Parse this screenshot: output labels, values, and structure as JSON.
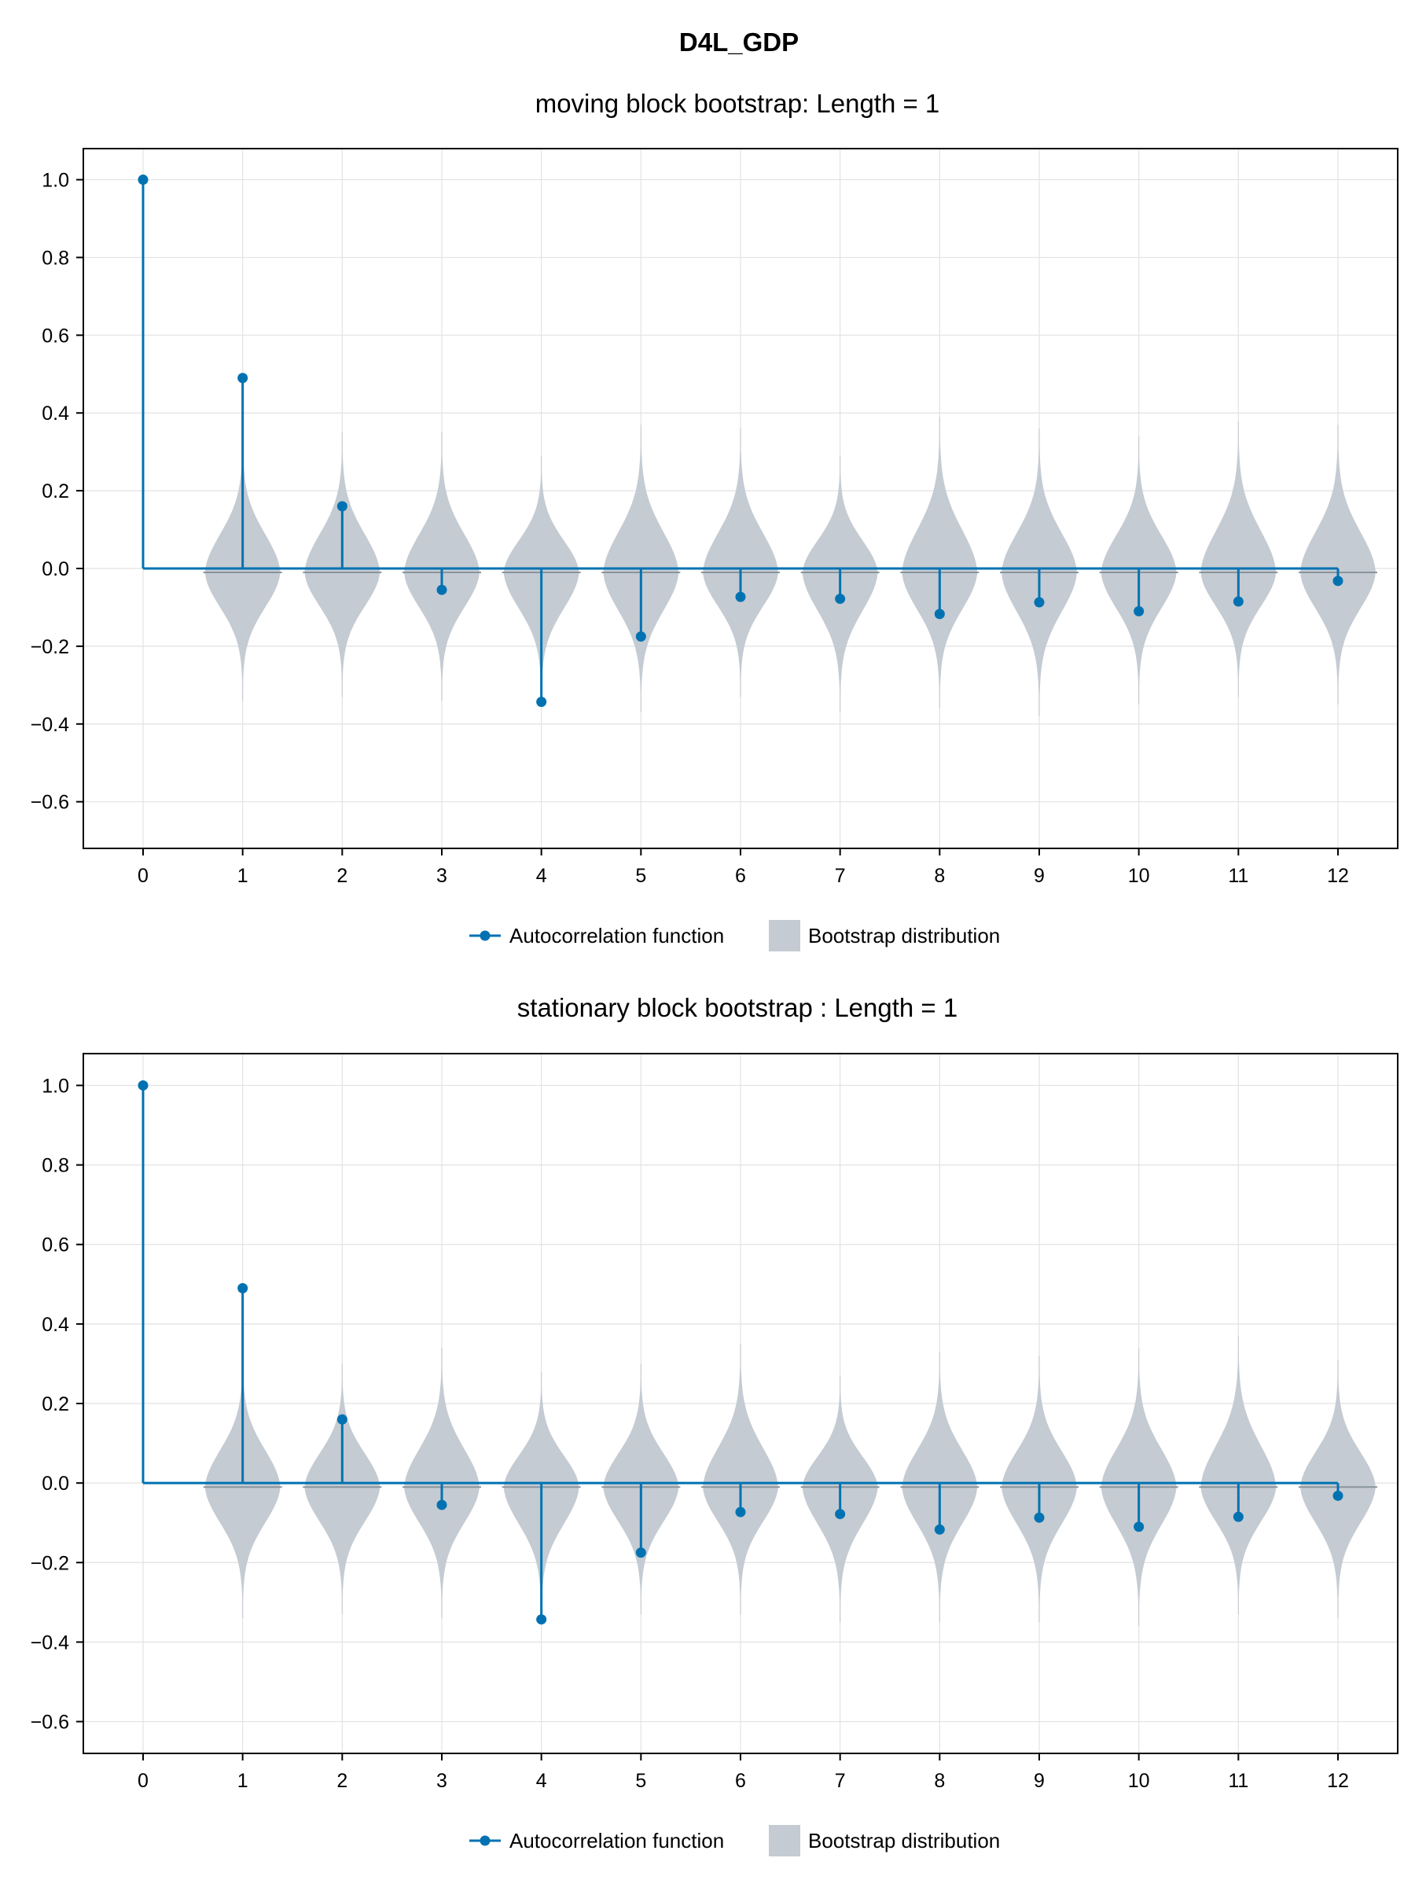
{
  "figure": {
    "title": "D4L_GDP"
  },
  "colors": {
    "acf": "#0072b2",
    "violin": "#c4cbd2",
    "violin_median": "#8a949e",
    "grid": "#e2e2e2",
    "axis": "#000000"
  },
  "chart_data": [
    {
      "type": "stem+violin",
      "title": "moving block bootstrap: Length = 1",
      "xlabel": "",
      "ylabel": "",
      "xlim": [
        -0.6,
        12.6
      ],
      "ylim": [
        -0.72,
        1.08
      ],
      "x_ticks": [
        0,
        1,
        2,
        3,
        4,
        5,
        6,
        7,
        8,
        9,
        10,
        11,
        12
      ],
      "y_ticks": [
        -0.6,
        -0.4,
        -0.2,
        0.0,
        0.2,
        0.4,
        0.6,
        0.8,
        1.0
      ],
      "y_tick_labels": [
        "−0.6",
        "−0.4",
        "−0.2",
        "0.0",
        "0.2",
        "0.4",
        "0.6",
        "0.8",
        "1.0"
      ],
      "grid": true,
      "legend_position": "bottom-center",
      "legend": [
        {
          "label": "Autocorrelation function",
          "kind": "line-marker"
        },
        {
          "label": "Bootstrap distribution",
          "kind": "patch"
        }
      ],
      "acf": {
        "lags": [
          0,
          1,
          2,
          3,
          4,
          5,
          6,
          7,
          8,
          9,
          10,
          11,
          12
        ],
        "values": [
          1.0,
          0.49,
          0.16,
          -0.055,
          -0.343,
          -0.175,
          -0.073,
          -0.078,
          -0.117,
          -0.087,
          -0.11,
          -0.085,
          -0.032
        ]
      },
      "bootstrap_distribution": {
        "lags": [
          1,
          2,
          3,
          4,
          5,
          6,
          7,
          8,
          9,
          10,
          11,
          12
        ],
        "median": [
          -0.01,
          -0.01,
          -0.01,
          -0.01,
          -0.01,
          -0.01,
          -0.01,
          -0.01,
          -0.01,
          -0.01,
          -0.01,
          -0.01
        ],
        "min": [
          -0.34,
          -0.33,
          -0.34,
          -0.35,
          -0.37,
          -0.33,
          -0.37,
          -0.36,
          -0.38,
          -0.35,
          -0.33,
          -0.35
        ],
        "max": [
          0.35,
          0.35,
          0.35,
          0.29,
          0.37,
          0.36,
          0.29,
          0.39,
          0.36,
          0.34,
          0.38,
          0.37
        ]
      }
    },
    {
      "type": "stem+violin",
      "title": "stationary block bootstrap : Length = 1",
      "xlabel": "",
      "ylabel": "",
      "xlim": [
        -0.6,
        12.6
      ],
      "ylim": [
        -0.68,
        1.08
      ],
      "x_ticks": [
        0,
        1,
        2,
        3,
        4,
        5,
        6,
        7,
        8,
        9,
        10,
        11,
        12
      ],
      "y_ticks": [
        -0.6,
        -0.4,
        -0.2,
        0.0,
        0.2,
        0.4,
        0.6,
        0.8,
        1.0
      ],
      "y_tick_labels": [
        "−0.6",
        "−0.4",
        "−0.2",
        "0.0",
        "0.2",
        "0.4",
        "0.6",
        "0.8",
        "1.0"
      ],
      "grid": true,
      "legend_position": "bottom-center",
      "legend": [
        {
          "label": "Autocorrelation function",
          "kind": "line-marker"
        },
        {
          "label": "Bootstrap distribution",
          "kind": "patch"
        }
      ],
      "acf": {
        "lags": [
          0,
          1,
          2,
          3,
          4,
          5,
          6,
          7,
          8,
          9,
          10,
          11,
          12
        ],
        "values": [
          1.0,
          0.49,
          0.16,
          -0.055,
          -0.343,
          -0.175,
          -0.073,
          -0.078,
          -0.117,
          -0.087,
          -0.11,
          -0.085,
          -0.032
        ]
      },
      "bootstrap_distribution": {
        "lags": [
          1,
          2,
          3,
          4,
          5,
          6,
          7,
          8,
          9,
          10,
          11,
          12
        ],
        "median": [
          -0.01,
          -0.01,
          -0.01,
          -0.01,
          -0.01,
          -0.01,
          -0.01,
          -0.01,
          -0.01,
          -0.01,
          -0.01,
          -0.01
        ],
        "min": [
          -0.34,
          -0.33,
          -0.34,
          -0.35,
          -0.33,
          -0.33,
          -0.35,
          -0.35,
          -0.35,
          -0.36,
          -0.33,
          -0.34
        ],
        "max": [
          0.33,
          0.3,
          0.34,
          0.28,
          0.3,
          0.35,
          0.27,
          0.33,
          0.32,
          0.34,
          0.37,
          0.31
        ]
      }
    }
  ]
}
